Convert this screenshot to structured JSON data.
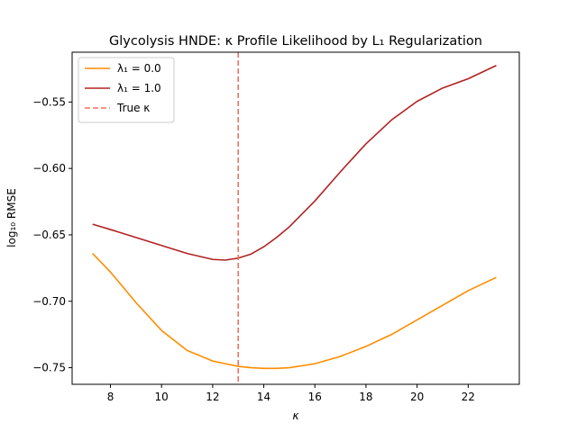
{
  "chart_data": {
    "type": "line",
    "title": "Glycolysis HNDE: κ Profile Likelihood by L₁ Regularization",
    "xlabel": "κ",
    "ylabel": "log₁₀ RMSE",
    "xlim": [
      6.5,
      24.0
    ],
    "ylim": [
      -0.7625,
      -0.5125
    ],
    "xticks": [
      8,
      10,
      12,
      14,
      16,
      18,
      20,
      22
    ],
    "yticks": [
      -0.75,
      -0.7,
      -0.65,
      -0.6,
      -0.55
    ],
    "xtick_labels": [
      "8",
      "10",
      "12",
      "14",
      "16",
      "18",
      "20",
      "22"
    ],
    "ytick_labels": [
      "−0.75",
      "−0.70",
      "−0.65",
      "−0.60",
      "−0.55"
    ],
    "grid": false,
    "legend_position": "top-left",
    "series": [
      {
        "name": "λ₁ = 0.0",
        "color": "#ff8c00",
        "style": "solid",
        "x": [
          7.3,
          8.0,
          9.0,
          10.0,
          11.0,
          12.0,
          12.5,
          13.0,
          13.5,
          14.0,
          14.5,
          15.0,
          16.0,
          17.0,
          18.0,
          19.0,
          20.0,
          21.0,
          22.0,
          23.1
        ],
        "y": [
          -0.664,
          -0.678,
          -0.701,
          -0.722,
          -0.737,
          -0.745,
          -0.747,
          -0.749,
          -0.75,
          -0.7505,
          -0.7505,
          -0.75,
          -0.747,
          -0.7415,
          -0.734,
          -0.725,
          -0.714,
          -0.703,
          -0.692,
          -0.682
        ]
      },
      {
        "name": "λ₁ = 1.0",
        "color": "#b22222",
        "style": "solid",
        "x": [
          7.3,
          8.0,
          9.0,
          10.0,
          11.0,
          12.0,
          12.5,
          13.0,
          13.5,
          14.0,
          14.5,
          15.0,
          16.0,
          17.0,
          18.0,
          19.0,
          20.0,
          21.0,
          22.0,
          23.1
        ],
        "y": [
          -0.642,
          -0.646,
          -0.652,
          -0.658,
          -0.664,
          -0.6685,
          -0.669,
          -0.6675,
          -0.6645,
          -0.659,
          -0.652,
          -0.644,
          -0.6245,
          -0.6025,
          -0.5815,
          -0.5635,
          -0.5495,
          -0.5395,
          -0.5325,
          -0.5225
        ]
      }
    ],
    "reference_line": {
      "name": "True κ",
      "orientation": "vertical",
      "x": 13.0,
      "color": "#f07060",
      "style": "dashed"
    }
  }
}
